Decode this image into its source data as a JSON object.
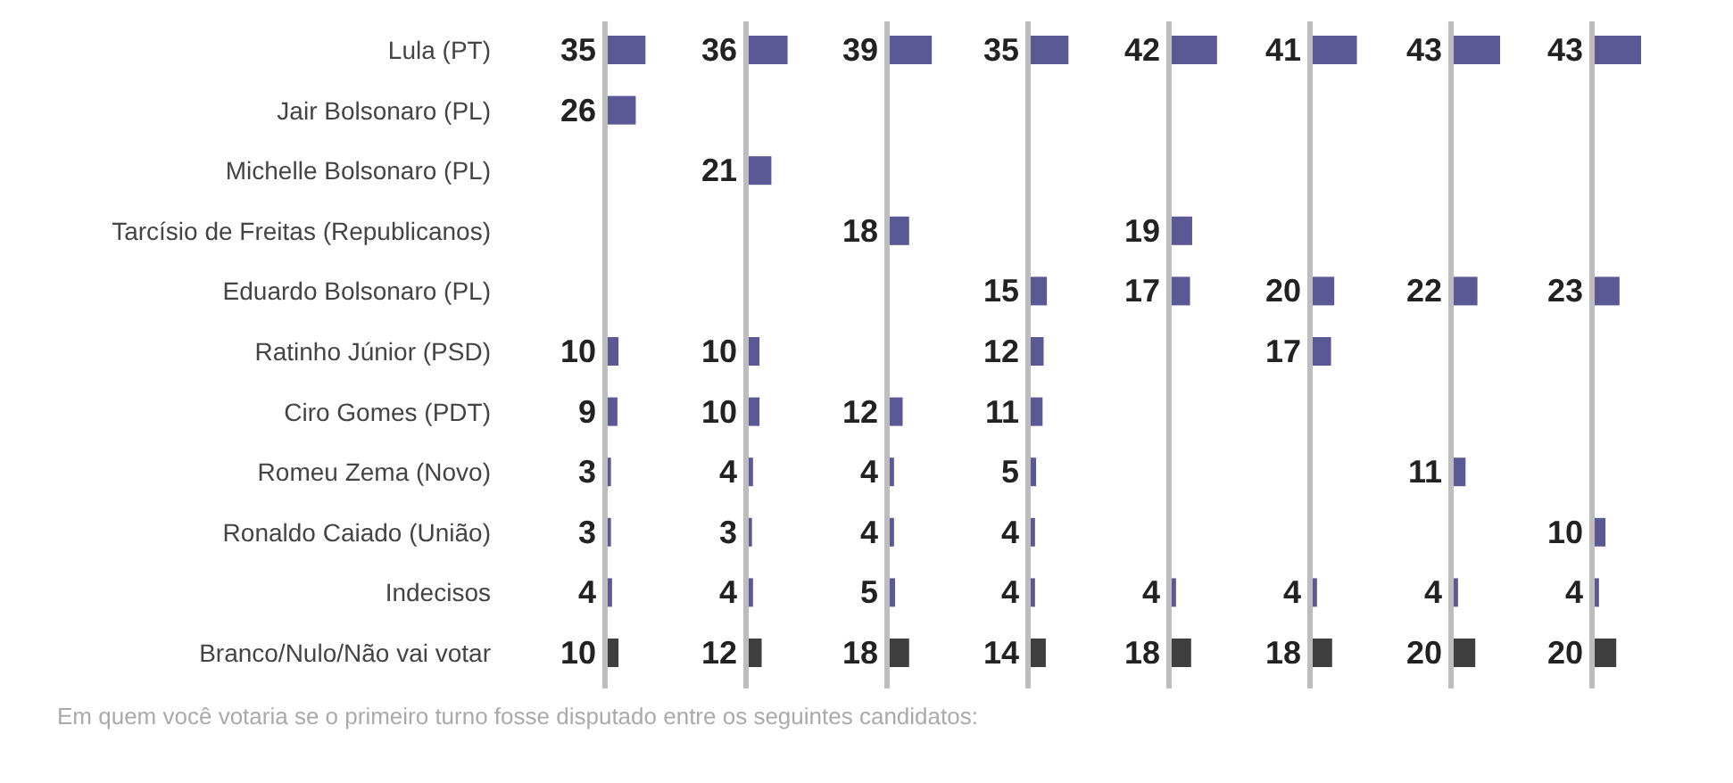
{
  "chart_data": [
    {
      "type": "bar",
      "orientation": "horizontal",
      "tick_labels": "y",
      "data_labels": true,
      "categories": [
        "Lula (PT)",
        "Jair Bolsonaro (PL)",
        "Michelle Bolsonaro (PL)",
        "Tarcísio de Freitas (Republicanos)",
        "Eduardo Bolsonaro (PL)",
        "Ratinho Júnior (PSD)",
        "Ciro Gomes (PDT)",
        "Romeu Zema (Novo)",
        "Ronaldo Caiado (União)",
        "Indecisos",
        "Branco/Nulo/Não vai votar"
      ],
      "values": [
        35,
        26,
        null,
        null,
        null,
        10,
        9,
        3,
        3,
        4,
        10
      ],
      "colors": [
        "#5b5896",
        "#5b5896",
        "#5b5896",
        "#5b5896",
        "#5b5896",
        "#5b5896",
        "#5b5896",
        "#5b5896",
        "#5b5896",
        "#5b5896",
        "#3f3f3f"
      ],
      "annotations": [
        "Em quem você votaria se o primeiro turno fosse disputado entre os seguintes candidatos:"
      ]
    },
    {
      "type": "bar",
      "orientation": "horizontal",
      "tick_labels": false,
      "data_labels": true,
      "categories": [
        null,
        null,
        null,
        null,
        null,
        null,
        null,
        null,
        null,
        null,
        null
      ],
      "values": [
        36,
        null,
        21,
        null,
        null,
        10,
        10,
        4,
        3,
        4,
        12
      ],
      "colors": [
        "#5b5896",
        "#5b5896",
        "#5b5896",
        "#5b5896",
        "#5b5896",
        "#5b5896",
        "#5b5896",
        "#5b5896",
        "#5b5896",
        "#5b5896",
        "#3f3f3f"
      ]
    },
    {
      "type": "bar",
      "orientation": "horizontal",
      "tick_labels": false,
      "data_labels": true,
      "categories": [
        null,
        null,
        null,
        null,
        null,
        null,
        null,
        null,
        null,
        null,
        null
      ],
      "values": [
        39,
        null,
        null,
        18,
        null,
        null,
        12,
        4,
        4,
        5,
        18
      ],
      "colors": [
        "#5b5896",
        "#5b5896",
        "#5b5896",
        "#5b5896",
        "#5b5896",
        "#5b5896",
        "#5b5896",
        "#5b5896",
        "#5b5896",
        "#5b5896",
        "#3f3f3f"
      ]
    },
    {
      "type": "bar",
      "orientation": "horizontal",
      "tick_labels": false,
      "data_labels": true,
      "categories": [
        null,
        null,
        null,
        null,
        null,
        null,
        null,
        null,
        null,
        null,
        null
      ],
      "values": [
        35,
        null,
        null,
        null,
        15,
        12,
        11,
        5,
        4,
        4,
        14
      ],
      "colors": [
        "#5b5896",
        "#5b5896",
        "#5b5896",
        "#5b5896",
        "#5b5896",
        "#5b5896",
        "#5b5896",
        "#5b5896",
        "#5b5896",
        "#5b5896",
        "#3f3f3f"
      ]
    },
    {
      "type": "bar",
      "orientation": "horizontal",
      "tick_labels": false,
      "data_labels": true,
      "categories": [
        null,
        null,
        null,
        null,
        null,
        null,
        null,
        null,
        null,
        null,
        null
      ],
      "values": [
        42,
        null,
        null,
        19,
        17,
        null,
        null,
        null,
        null,
        4,
        18
      ],
      "colors": [
        "#5b5896",
        "#5b5896",
        "#5b5896",
        "#5b5896",
        "#5b5896",
        "#5b5896",
        "#5b5896",
        "#5b5896",
        "#5b5896",
        "#5b5896",
        "#3f3f3f"
      ]
    },
    {
      "type": "bar",
      "orientation": "horizontal",
      "tick_labels": false,
      "data_labels": true,
      "categories": [
        null,
        null,
        null,
        null,
        null,
        null,
        null,
        null,
        null,
        null,
        null
      ],
      "values": [
        41,
        null,
        null,
        null,
        20,
        17,
        null,
        null,
        null,
        4,
        18
      ],
      "colors": [
        "#5b5896",
        "#5b5896",
        "#5b5896",
        "#5b5896",
        "#5b5896",
        "#5b5896",
        "#5b5896",
        "#5b5896",
        "#5b5896",
        "#5b5896",
        "#3f3f3f"
      ]
    },
    {
      "type": "bar",
      "orientation": "horizontal",
      "tick_labels": false,
      "data_labels": true,
      "categories": [
        null,
        null,
        null,
        null,
        null,
        null,
        null,
        null,
        null,
        null,
        null
      ],
      "values": [
        43,
        null,
        null,
        null,
        22,
        null,
        null,
        11,
        null,
        4,
        20
      ],
      "colors": [
        "#5b5896",
        "#5b5896",
        "#5b5896",
        "#5b5896",
        "#5b5896",
        "#5b5896",
        "#5b5896",
        "#5b5896",
        "#5b5896",
        "#5b5896",
        "#3f3f3f"
      ]
    },
    {
      "type": "bar",
      "orientation": "horizontal",
      "tick_labels": false,
      "data_labels": true,
      "categories": [
        null,
        null,
        null,
        null,
        null,
        null,
        null,
        null,
        null,
        null,
        null
      ],
      "values": [
        43,
        null,
        null,
        null,
        23,
        null,
        null,
        null,
        10,
        4,
        20
      ],
      "colors": [
        "#5b5896",
        "#5b5896",
        "#5b5896",
        "#5b5896",
        "#5b5896",
        "#5b5896",
        "#5b5896",
        "#5b5896",
        "#5b5896",
        "#5b5896",
        "#3f3f3f"
      ]
    }
  ]
}
